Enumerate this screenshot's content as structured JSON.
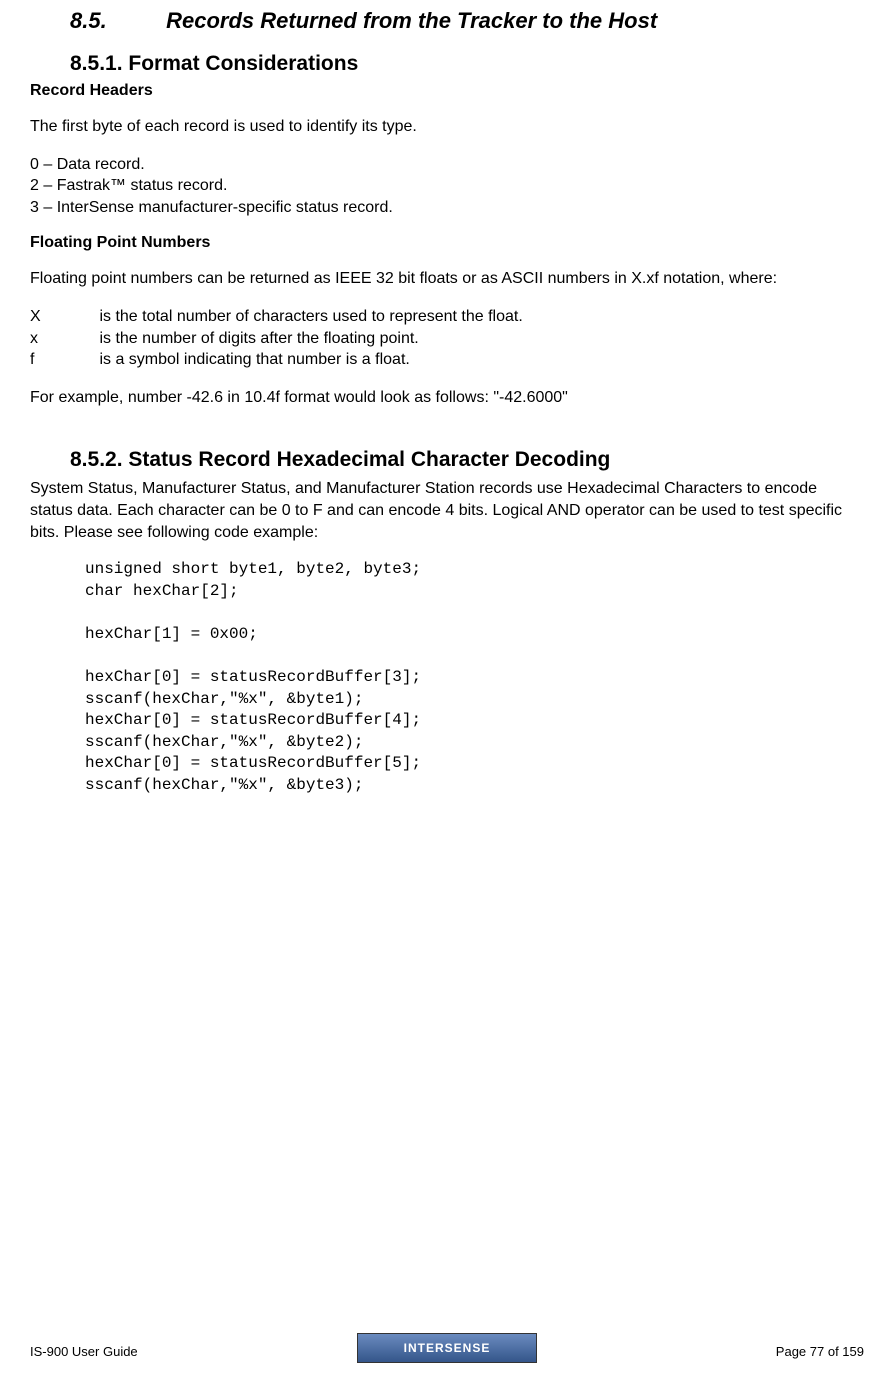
{
  "section": {
    "number": "8.5.",
    "title": "Records Returned from the Tracker to the Host"
  },
  "sub1": {
    "number": "8.5.1.",
    "title": "Format Considerations",
    "h1": "Record Headers",
    "p1": "The first byte of each record is used to identify its type.",
    "list": {
      "l1": "0 – Data record.",
      "l2": "2 – Fastrak™ status record.",
      "l3": "3 – InterSense manufacturer-specific status record."
    },
    "h2": "Floating Point Numbers",
    "p2": "Floating point numbers can be returned as IEEE 32 bit floats or as ASCII numbers in X.xf notation, where:",
    "defs": {
      "d1sym": "X",
      "d1txt": "is the total number of characters used to represent the float.",
      "d2sym": "x",
      "d2txt": "is the number of digits after the floating point.",
      "d3sym": "f",
      "d3txt": "is a symbol indicating that number is a float."
    },
    "p3": "For example, number -42.6 in 10.4f format would look as follows: \"-42.6000\""
  },
  "sub2": {
    "number": "8.5.2.",
    "title": "Status Record Hexadecimal Character Decoding",
    "p1": "System Status, Manufacturer Status, and Manufacturer Station records use Hexadecimal Characters to encode status data.  Each character can be 0 to F and can encode 4 bits.  Logical AND operator can be used to test specific bits.  Please see following code example:",
    "code": "unsigned short byte1, byte2, byte3;\nchar hexChar[2];\n\nhexChar[1] = 0x00;\n\nhexChar[0] = statusRecordBuffer[3];\nsscanf(hexChar,\"%x\", &byte1);\nhexChar[0] = statusRecordBuffer[4];\nsscanf(hexChar,\"%x\", &byte2);\nhexChar[0] = statusRecordBuffer[5];\nsscanf(hexChar,\"%x\", &byte3);"
  },
  "footer": {
    "left": "IS-900 User Guide",
    "right": "Page 77 of 159",
    "logo": "INTERSENSE"
  }
}
